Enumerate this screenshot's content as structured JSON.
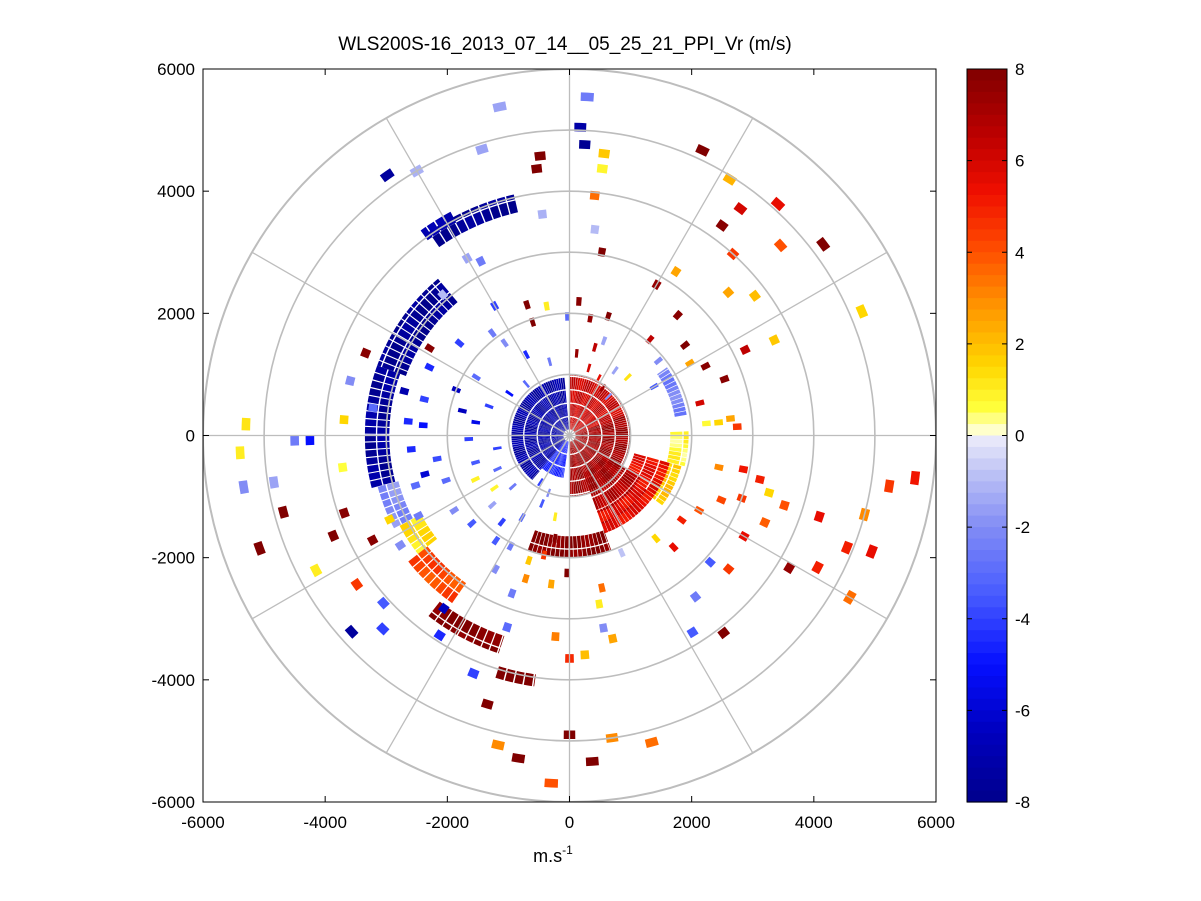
{
  "chart_data": {
    "type": "heatmap",
    "subtype": "polar-ppi-scan",
    "title": "WLS200S-16_2013_07_14__05_25_21_PPI_Vr (m/s)",
    "xlabel": "m.s",
    "xlabel_exponent": "-1",
    "ylabel": "",
    "xlim": [
      -6000,
      6000
    ],
    "ylim": [
      -6000,
      6000
    ],
    "xticks": [
      -6000,
      -4000,
      -2000,
      0,
      2000,
      4000,
      6000
    ],
    "yticks": [
      6000,
      4000,
      2000,
      0,
      -2000,
      -4000,
      -6000
    ],
    "x_tick_labels": [
      "-6000",
      "-4000",
      "-2000",
      "0",
      "2000",
      "4000",
      "6000"
    ],
    "y_tick_labels": [
      "6000",
      "4000",
      "2000",
      "0",
      "-2000",
      "-4000",
      "-6000"
    ],
    "polar_grid": {
      "rings": [
        1000,
        2000,
        3000,
        4000,
        5000,
        6000
      ],
      "spokes_deg": [
        0,
        30,
        60,
        90,
        120,
        150,
        180,
        210,
        240,
        270,
        300,
        330
      ],
      "color": "#bdbdbd"
    },
    "colorbar": {
      "min": -8,
      "max": 8,
      "ticks": [
        8,
        6,
        4,
        2,
        0,
        -2,
        -4,
        -6,
        -8
      ],
      "tick_labels": [
        "8",
        "6",
        "4",
        "2",
        "0",
        "-2",
        "-4",
        "-6",
        "-8"
      ],
      "colormap": "blue-white-yellow-red",
      "units": "m/s"
    },
    "arcs": [
      {
        "r0": 3750,
        "r1": 4050,
        "a0": 103,
        "a1": 125,
        "v": -7.8
      },
      {
        "r0": 3950,
        "r1": 4150,
        "a0": 118,
        "a1": 126,
        "v": -7.2
      },
      {
        "r0": 2850,
        "r1": 3350,
        "a0": 130,
        "a1": 160,
        "v": -7.8
      },
      {
        "r0": 2950,
        "r1": 3350,
        "a0": 160,
        "a1": 195,
        "v": -7.5
      },
      {
        "r0": 2900,
        "r1": 3250,
        "a0": 195,
        "a1": 208,
        "v": -2.0
      },
      {
        "r0": 2750,
        "r1": 3150,
        "a0": 208,
        "a1": 218,
        "v": 1.2
      },
      {
        "r0": 2950,
        "r1": 3350,
        "a0": 218,
        "a1": 235,
        "v": 4.2
      },
      {
        "r0": 3450,
        "r1": 3750,
        "a0": 232,
        "a1": 252,
        "v": 8
      },
      {
        "r0": 3950,
        "r1": 4150,
        "a0": 253,
        "a1": 262,
        "v": 8
      },
      {
        "r0": 1650,
        "r1": 2000,
        "a0": 250,
        "a1": 290,
        "v": 7.8
      },
      {
        "r0": 1450,
        "r1": 1700,
        "a0": 290,
        "a1": 325,
        "v": 6.5
      },
      {
        "r0": 1550,
        "r1": 1900,
        "a0": 323,
        "a1": 345,
        "v": 1.8
      },
      {
        "r0": 1650,
        "r1": 1950,
        "a0": 345,
        "a1": 362,
        "v": 0.7
      },
      {
        "r0": 1750,
        "r1": 1950,
        "a0": 10,
        "a1": 35,
        "v": -2.3
      },
      {
        "r0": 1100,
        "r1": 1700,
        "a0": 290,
        "a1": 345,
        "v": 5.5
      },
      {
        "r0": 650,
        "r1": 1350,
        "a0": 290,
        "a1": 330,
        "v": 6.8
      },
      {
        "r0": 100,
        "r1": 1000,
        "a0": 270,
        "a1": 380,
        "v": 7.2
      },
      {
        "r0": 100,
        "r1": 1000,
        "a0": 380,
        "a1": 450,
        "v": 6.2
      },
      {
        "r0": 100,
        "r1": 950,
        "a0": 95,
        "a1": 230,
        "v": -7.2
      },
      {
        "r0": 100,
        "r1": 700,
        "a0": 230,
        "a1": 262,
        "v": -4.5
      }
    ],
    "blocks": [
      {
        "r": 5550,
        "a": 87,
        "v": -2.5
      },
      {
        "r": 5050,
        "a": 88,
        "v": -7.2
      },
      {
        "r": 4770,
        "a": 87,
        "v": -7.8
      },
      {
        "r": 4650,
        "a": 83,
        "v": 1.8
      },
      {
        "r": 4400,
        "a": 83,
        "v": 0.8
      },
      {
        "r": 3950,
        "a": 84,
        "v": 3.5
      },
      {
        "r": 5500,
        "a": 102,
        "v": -1.5
      },
      {
        "r": 4900,
        "a": 107,
        "v": -1.5
      },
      {
        "r": 4600,
        "a": 96,
        "v": 8
      },
      {
        "r": 4400,
        "a": 97,
        "v": 8
      },
      {
        "r": 5000,
        "a": 120,
        "v": -1.2
      },
      {
        "r": 5200,
        "a": 125,
        "v": -7.5
      },
      {
        "r": 3650,
        "a": 97,
        "v": -1.2
      },
      {
        "r": 3400,
        "a": 83,
        "v": -1.0
      },
      {
        "r": 3050,
        "a": 80,
        "v": 8
      },
      {
        "r": 5150,
        "a": 65,
        "v": 8
      },
      {
        "r": 4950,
        "a": 58,
        "v": 2.2
      },
      {
        "r": 4250,
        "a": 54,
        "v": 7.8
      },
      {
        "r": 4650,
        "a": 53,
        "v": 6.0
      },
      {
        "r": 5100,
        "a": 48,
        "v": 5.5
      },
      {
        "r": 5200,
        "a": 37,
        "v": 8
      },
      {
        "r": 5200,
        "a": 23,
        "v": 1.5
      },
      {
        "r": 4000,
        "a": 48,
        "v": 4.5
      },
      {
        "r": 4650,
        "a": 42,
        "v": 4.0
      },
      {
        "r": 3800,
        "a": 37,
        "v": 2.0
      },
      {
        "r": 3700,
        "a": 25,
        "v": 1.8
      },
      {
        "r": 3500,
        "a": 42,
        "v": 2.5
      },
      {
        "r": 3200,
        "a": 57,
        "v": 2.5
      },
      {
        "r": 2850,
        "a": 60,
        "v": 7.5
      },
      {
        "r": 3200,
        "a": 26,
        "v": 6.5
      },
      {
        "r": 2700,
        "a": 20,
        "v": 7.8
      },
      {
        "r": 2200,
        "a": 14,
        "v": 6.0
      },
      {
        "r": 2650,
        "a": 6,
        "v": 2.5
      },
      {
        "r": 2750,
        "a": 3,
        "v": 4.5
      },
      {
        "r": 2450,
        "a": 5,
        "v": 1.5
      },
      {
        "r": 2250,
        "a": 5,
        "v": 0.7
      },
      {
        "r": 5700,
        "a": -7,
        "v": 5.2
      },
      {
        "r": 5300,
        "a": -9,
        "v": 4.5
      },
      {
        "r": 5000,
        "a": -15,
        "v": 3.0
      },
      {
        "r": 5300,
        "a": -21,
        "v": 5.5
      },
      {
        "r": 4900,
        "a": -22,
        "v": 5.0
      },
      {
        "r": 5300,
        "a": -30,
        "v": 3.5
      },
      {
        "r": 4600,
        "a": -28,
        "v": 5.0
      },
      {
        "r": 4300,
        "a": -18,
        "v": 5.5
      },
      {
        "r": 4200,
        "a": -31,
        "v": 7.5
      },
      {
        "r": 3700,
        "a": -18,
        "v": 4.0
      },
      {
        "r": 3400,
        "a": -16,
        "v": 1.5
      },
      {
        "r": 3500,
        "a": -24,
        "v": 3.8
      },
      {
        "r": 3300,
        "a": -30,
        "v": 5.5
      },
      {
        "r": 3400,
        "a": -40,
        "v": 4.5
      },
      {
        "r": 3200,
        "a": -13,
        "v": 5.0
      },
      {
        "r": 3000,
        "a": -20,
        "v": 4.5
      },
      {
        "r": 2900,
        "a": -11,
        "v": 5.2
      },
      {
        "r": 2700,
        "a": -23,
        "v": 4.2
      },
      {
        "r": 2500,
        "a": -12,
        "v": 3.0
      },
      {
        "r": 2450,
        "a": -30,
        "v": 4.0
      },
      {
        "r": 2300,
        "a": -37,
        "v": 5.0
      },
      {
        "r": 4100,
        "a": -52,
        "v": 8
      },
      {
        "r": 3350,
        "a": -52,
        "v": -2.5
      },
      {
        "r": 3100,
        "a": -42,
        "v": -3.5
      },
      {
        "r": 2500,
        "a": -47,
        "v": 5.5
      },
      {
        "r": 2200,
        "a": -50,
        "v": 1.5
      },
      {
        "r": 2100,
        "a": -66,
        "v": -0.8
      },
      {
        "r": 3800,
        "a": -58,
        "v": -3.5
      },
      {
        "r": 5200,
        "a": -75,
        "v": 3.5
      },
      {
        "r": 5000,
        "a": -82,
        "v": 3.0
      },
      {
        "r": 5350,
        "a": -86,
        "v": 8
      },
      {
        "r": 5700,
        "a": -93,
        "v": 4.0
      },
      {
        "r": 5350,
        "a": -99,
        "v": 8
      },
      {
        "r": 4900,
        "a": -90,
        "v": 8
      },
      {
        "r": 5200,
        "a": -103,
        "v": 3.0
      },
      {
        "r": 3600,
        "a": -86,
        "v": 2.0
      },
      {
        "r": 3400,
        "a": -78,
        "v": 2.5
      },
      {
        "r": 3200,
        "a": -80,
        "v": -2.0
      },
      {
        "r": 3650,
        "a": -90,
        "v": 4.8
      },
      {
        "r": 3300,
        "a": -94,
        "v": 3.2
      },
      {
        "r": 2800,
        "a": -80,
        "v": 1.0
      },
      {
        "r": 2550,
        "a": -78,
        "v": 3.5
      },
      {
        "r": 2450,
        "a": -97,
        "v": 2.5
      },
      {
        "r": 2250,
        "a": -91,
        "v": 8
      },
      {
        "r": 2150,
        "a": -108,
        "v": 1.8
      },
      {
        "r": 4600,
        "a": -107,
        "v": 8
      },
      {
        "r": 4200,
        "a": -112,
        "v": -4.0
      },
      {
        "r": 3300,
        "a": -108,
        "v": -3.0
      },
      {
        "r": 2750,
        "a": -110,
        "v": -2.5
      },
      {
        "r": 2500,
        "a": -119,
        "v": -2.0
      },
      {
        "r": 2100,
        "a": -125,
        "v": -3.5
      },
      {
        "r": 3900,
        "a": -123,
        "v": -4.5
      },
      {
        "r": 3500,
        "a": -126,
        "v": -6.5
      },
      {
        "r": 4400,
        "a": -134,
        "v": -4.0
      },
      {
        "r": 4800,
        "a": -138,
        "v": -7.5
      },
      {
        "r": 4100,
        "a": -138,
        "v": -3.5
      },
      {
        "r": 4250,
        "a": -145,
        "v": 4.5
      },
      {
        "r": 4700,
        "a": -152,
        "v": 1.0
      },
      {
        "r": 4200,
        "a": -157,
        "v": 8
      },
      {
        "r": 3650,
        "a": -152,
        "v": 7.8
      },
      {
        "r": 3300,
        "a": -147,
        "v": -2.0
      },
      {
        "r": 3250,
        "a": -155,
        "v": 1.5
      },
      {
        "r": 3900,
        "a": -161,
        "v": 7.8
      },
      {
        "r": 4850,
        "a": -165,
        "v": 8
      },
      {
        "r": 5400,
        "a": -160,
        "v": 8
      },
      {
        "r": 4900,
        "a": -171,
        "v": -1.5
      },
      {
        "r": 5400,
        "a": -171,
        "v": -2.0
      },
      {
        "r": 5400,
        "a": -177,
        "v": 1.0
      },
      {
        "r": 4500,
        "a": -179,
        "v": -2.5
      },
      {
        "r": 4250,
        "a": -179,
        "v": -5.0
      },
      {
        "r": 3750,
        "a": -172,
        "v": 0.6
      },
      {
        "r": 5300,
        "a": 178,
        "v": 1.2
      },
      {
        "r": 3700,
        "a": 176,
        "v": 1.5
      },
      {
        "r": 3700,
        "a": 166,
        "v": -2.0
      },
      {
        "r": 3600,
        "a": 158,
        "v": 7.8
      },
      {
        "r": 3250,
        "a": 172,
        "v": -3.0
      },
      {
        "r": 2450,
        "a": 166,
        "v": -4.0
      },
      {
        "r": 2400,
        "a": 176,
        "v": -5.0
      },
      {
        "r": 2600,
        "a": 185,
        "v": -4.5
      },
      {
        "r": 2450,
        "a": 195,
        "v": -6.0
      },
      {
        "r": 2200,
        "a": 190,
        "v": -3.8
      },
      {
        "r": 2550,
        "a": 154,
        "v": -4.5
      },
      {
        "r": 2700,
        "a": 148,
        "v": 7.8
      },
      {
        "r": 2350,
        "a": 140,
        "v": -4.0
      },
      {
        "r": 3100,
        "a": 132,
        "v": -1.0
      },
      {
        "r": 3350,
        "a": 120,
        "v": -1.5
      },
      {
        "r": 3200,
        "a": 117,
        "v": -2.5
      },
      {
        "r": 2450,
        "a": 120,
        "v": -4.0
      },
      {
        "r": 2100,
        "a": 127,
        "v": -2.5
      },
      {
        "r": 1850,
        "a": 125,
        "v": -2.0
      },
      {
        "r": 2250,
        "a": 108,
        "v": 8
      },
      {
        "r": 1950,
        "a": 108,
        "v": 8
      },
      {
        "r": 2150,
        "a": 100,
        "v": 1.0
      },
      {
        "r": 1950,
        "a": 91,
        "v": -3.0
      },
      {
        "r": 2200,
        "a": 86,
        "v": 7.8
      },
      {
        "r": 1950,
        "a": 80,
        "v": 7.5
      },
      {
        "r": 2050,
        "a": 72,
        "v": 8
      },
      {
        "r": 1650,
        "a": 70,
        "v": -1.5
      },
      {
        "r": 1500,
        "a": 74,
        "v": 6.5
      },
      {
        "r": 1350,
        "a": 85,
        "v": 7.5
      },
      {
        "r": 1150,
        "a": 74,
        "v": 6.0
      },
      {
        "r": 1050,
        "a": 63,
        "v": 5.5
      },
      {
        "r": 950,
        "a": 55,
        "v": 7.2
      },
      {
        "r": 900,
        "a": 45,
        "v": -2.0
      },
      {
        "r": 1300,
        "a": 55,
        "v": -1.5
      },
      {
        "r": 1600,
        "a": 30,
        "v": -3.5
      },
      {
        "r": 1350,
        "a": 45,
        "v": 1.2
      },
      {
        "r": 2400,
        "a": 38,
        "v": 8
      },
      {
        "r": 2300,
        "a": 31,
        "v": 2.5
      },
      {
        "r": 2500,
        "a": 27,
        "v": 7.8
      },
      {
        "r": 2650,
        "a": 48,
        "v": 7.8
      },
      {
        "r": 2050,
        "a": 50,
        "v": 6.5
      },
      {
        "r": 1900,
        "a": 40,
        "v": -2.0
      },
      {
        "r": 1500,
        "a": 118,
        "v": -4.5
      },
      {
        "r": 1250,
        "a": 105,
        "v": -2.5
      },
      {
        "r": 1100,
        "a": 130,
        "v": -3.0
      },
      {
        "r": 1200,
        "a": 145,
        "v": -5.0
      },
      {
        "r": 1400,
        "a": 160,
        "v": -4.0
      },
      {
        "r": 1550,
        "a": 172,
        "v": -5.5
      },
      {
        "r": 1650,
        "a": 182,
        "v": -4.0
      },
      {
        "r": 1800,
        "a": 167,
        "v": -6.5
      },
      {
        "r": 1600,
        "a": 196,
        "v": -3.5
      },
      {
        "r": 1200,
        "a": 190,
        "v": -4.0
      },
      {
        "r": 1300,
        "a": 205,
        "v": -3.0
      },
      {
        "r": 1500,
        "a": 215,
        "v": 0.8
      },
      {
        "r": 1700,
        "a": 222,
        "v": -1.5
      },
      {
        "r": 1250,
        "a": 222,
        "v": -2.5
      },
      {
        "r": 1800,
        "a": 232,
        "v": -4.0
      },
      {
        "r": 1550,
        "a": 240,
        "v": -3.0
      },
      {
        "r": 2150,
        "a": 222,
        "v": -3.5
      },
      {
        "r": 2050,
        "a": 242,
        "v": -2.5
      },
      {
        "r": 2000,
        "a": 258,
        "v": 4.5
      },
      {
        "r": 2450,
        "a": 253,
        "v": 3.0
      },
      {
        "r": 1700,
        "a": 262,
        "v": 7.8
      },
      {
        "r": 1350,
        "a": 260,
        "v": 1.0
      },
      {
        "r": 1200,
        "a": 248,
        "v": -3.5
      },
      {
        "r": 900,
        "a": 238,
        "v": -4.0
      },
      {
        "r": 1000,
        "a": 250,
        "v": -2.0
      },
      {
        "r": 2150,
        "a": 200,
        "v": -3.0
      },
      {
        "r": 2250,
        "a": 213,
        "v": -2.0
      },
      {
        "r": 1700,
        "a": 205,
        "v": 0.9
      },
      {
        "r": 1800,
        "a": 148,
        "v": -3.0
      },
      {
        "r": 2000,
        "a": 158,
        "v": -6.5
      },
      {
        "r": 2800,
        "a": 165,
        "v": -7.0
      },
      {
        "r": 2650,
        "a": 175,
        "v": -4.5
      },
      {
        "r": 2650,
        "a": 198,
        "v": -3.0
      },
      {
        "r": 2800,
        "a": 208,
        "v": -2.5
      }
    ]
  }
}
